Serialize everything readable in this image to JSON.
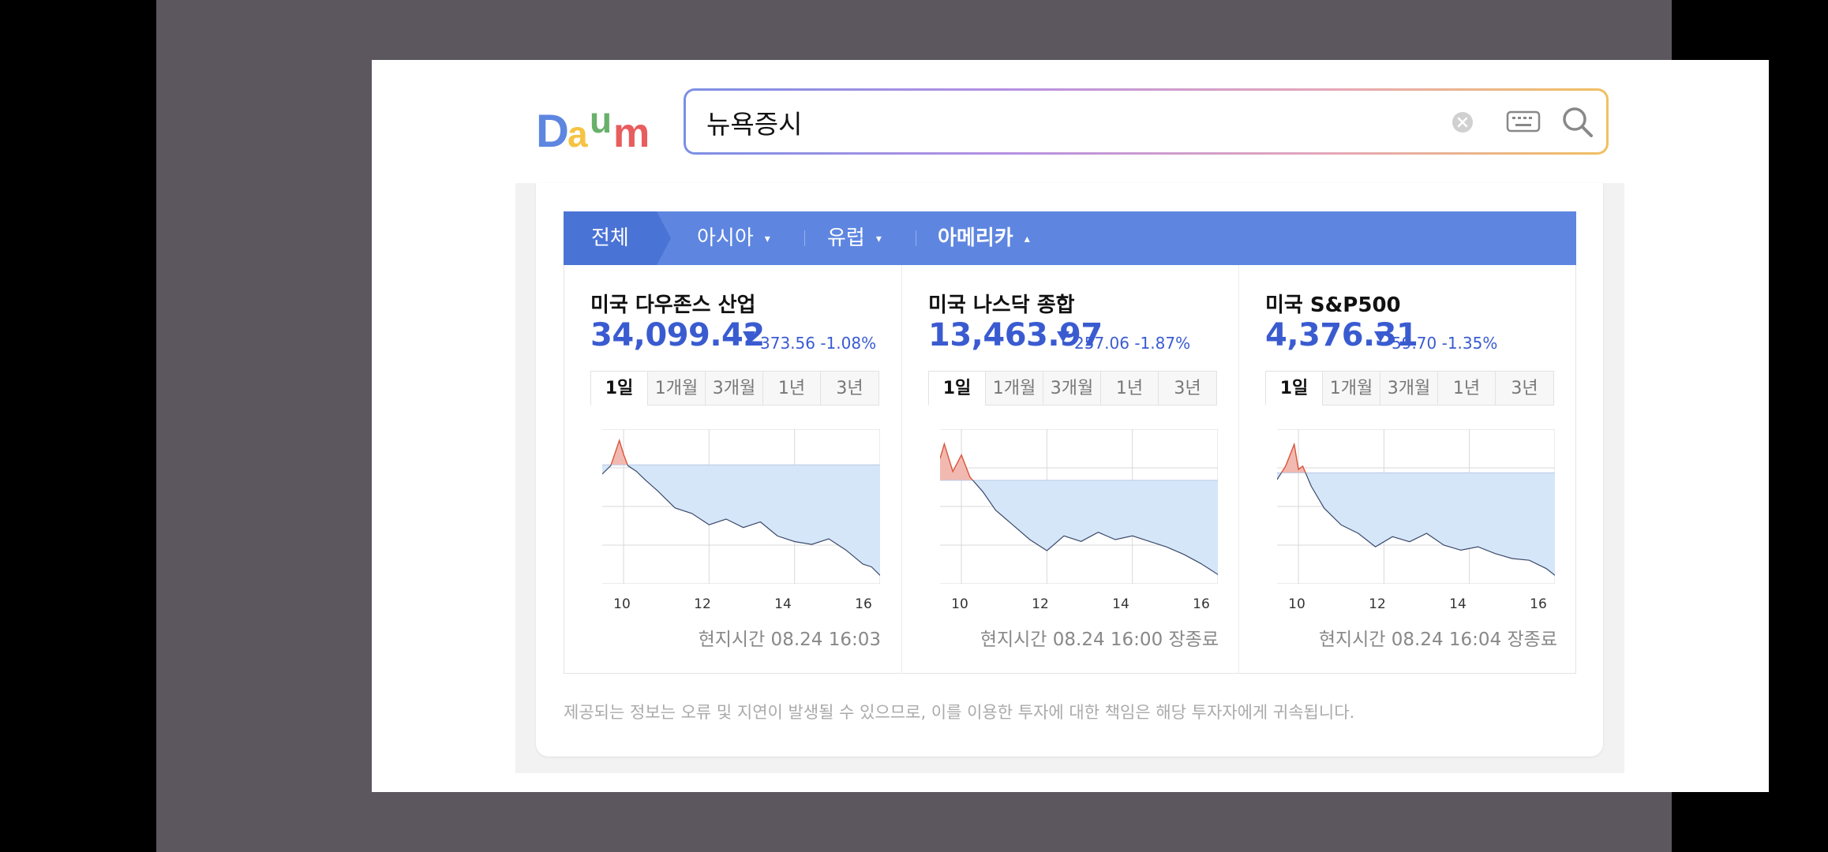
{
  "search": {
    "query": "뉴욕증시"
  },
  "logo": {
    "text": "Daum",
    "colors": [
      "#5e86e0",
      "#f6c342",
      "#e85d5d",
      "#69b06a"
    ]
  },
  "tabs": [
    {
      "label": "전체",
      "active": false
    },
    {
      "label": "아시아",
      "caret": "▾"
    },
    {
      "label": "유럽",
      "caret": "▾"
    },
    {
      "label": "아메리카",
      "caret": "▴",
      "active": true
    }
  ],
  "period_tabs": [
    "1일",
    "1개월",
    "3개월",
    "1년",
    "3년"
  ],
  "x_ticks": [
    "10",
    "12",
    "14",
    "16"
  ],
  "indices": [
    {
      "name": "미국 다우존스 산업",
      "value": "34,099.42",
      "change": "373.56 -1.08%",
      "timestamp": "현지시간 08.24 16:03",
      "chart_data": {
        "type": "area",
        "x_hours": [
          9.5,
          9.7,
          9.9,
          10.0,
          10.1,
          10.3,
          10.5,
          10.8,
          11.2,
          11.6,
          12.0,
          12.4,
          12.8,
          13.2,
          13.6,
          14.0,
          14.4,
          14.8,
          15.2,
          15.6,
          15.8,
          16.0
        ],
        "values": [
          34440,
          34470,
          34560,
          34510,
          34470,
          34450,
          34420,
          34380,
          34320,
          34300,
          34260,
          34280,
          34250,
          34270,
          34220,
          34200,
          34190,
          34210,
          34170,
          34120,
          34110,
          34080
        ],
        "baseline": 34473,
        "ylim": [
          34050,
          34600
        ],
        "xlim": [
          9.5,
          16.0
        ]
      }
    },
    {
      "name": "미국 나스닥 종합",
      "value": "13,463.97",
      "change": "257.06 -1.87%",
      "timestamp": "현지시간 08.24 16:00 장종료",
      "chart_data": {
        "type": "area",
        "x_hours": [
          9.5,
          9.6,
          9.8,
          10.0,
          10.2,
          10.5,
          10.8,
          11.2,
          11.6,
          12.0,
          12.4,
          12.8,
          13.2,
          13.6,
          14.0,
          14.4,
          14.8,
          15.2,
          15.6,
          15.8,
          16.0
        ],
        "values": [
          13780,
          13820,
          13745,
          13790,
          13730,
          13690,
          13640,
          13600,
          13560,
          13530,
          13570,
          13555,
          13580,
          13560,
          13570,
          13555,
          13540,
          13520,
          13495,
          13480,
          13465
        ],
        "baseline": 13721,
        "ylim": [
          13440,
          13860
        ],
        "xlim": [
          9.5,
          16.0
        ]
      }
    },
    {
      "name": "미국 S&P500",
      "value": "4,376.31",
      "change": "59.70 -1.35%",
      "timestamp": "현지시간 08.24 16:04 장종료",
      "chart_data": {
        "type": "area",
        "x_hours": [
          9.5,
          9.7,
          9.9,
          10.0,
          10.1,
          10.3,
          10.6,
          11.0,
          11.4,
          11.8,
          12.2,
          12.6,
          13.0,
          13.4,
          13.8,
          14.2,
          14.6,
          15.0,
          15.4,
          15.8,
          16.0
        ],
        "values": [
          4432,
          4440,
          4453,
          4438,
          4440,
          4428,
          4415,
          4405,
          4400,
          4392,
          4398,
          4395,
          4400,
          4393,
          4390,
          4392,
          4388,
          4385,
          4384,
          4379,
          4375
        ],
        "baseline": 4436,
        "ylim": [
          4370,
          4462
        ],
        "xlim": [
          9.5,
          16.0
        ]
      }
    }
  ],
  "disclaimer": "제공되는 정보는 오류 및 지연이 발생될 수 있으므로, 이를 이용한 투자에 대한 책임은 해당 투자자에게 귀속됩니다.",
  "colors": {
    "up_fill": "#f2b9b0",
    "up_line": "#d9553d",
    "down_fill": "#d5e6f8",
    "down_line": "#3b4a6a",
    "accent": "#5e86e0",
    "index_blue": "#3a5bd0"
  }
}
